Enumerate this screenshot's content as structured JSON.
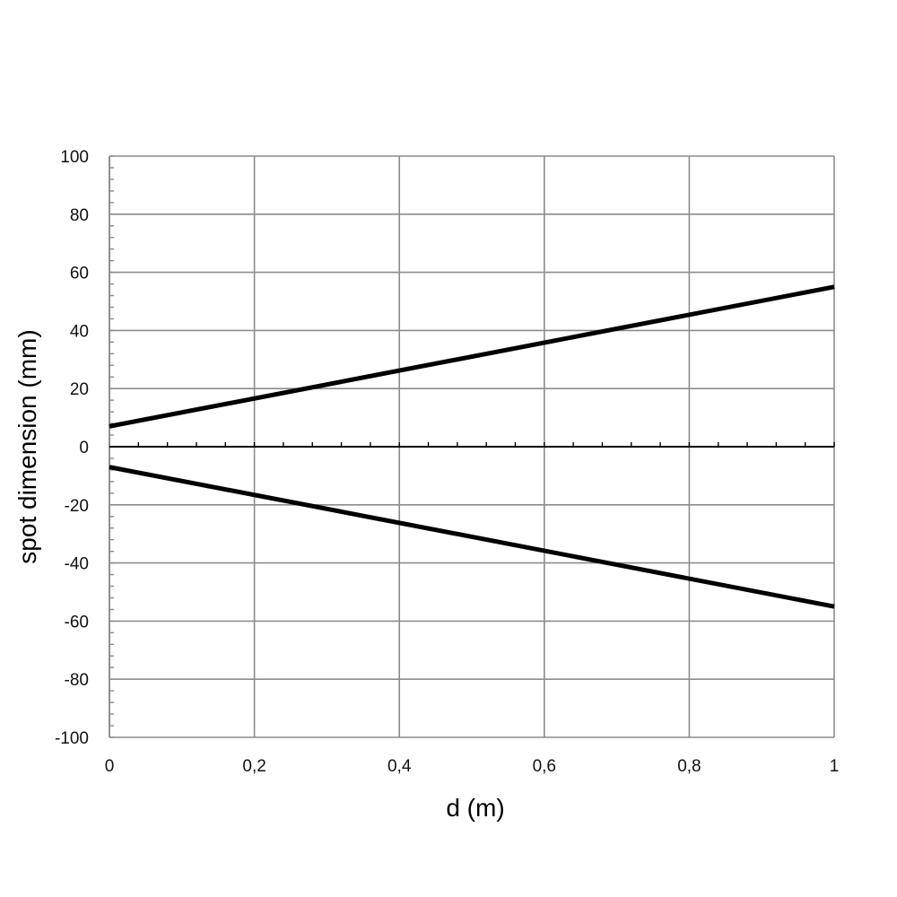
{
  "chart_data": {
    "type": "line",
    "title": "",
    "xlabel": "d (m)",
    "ylabel": "spot dimension (mm)",
    "xlim": [
      0,
      1
    ],
    "ylim": [
      -100,
      100
    ],
    "x_ticks": [
      0,
      0.2,
      0.4,
      0.6,
      0.8,
      1
    ],
    "x_tick_labels": [
      "0",
      "0,2",
      "0,4",
      "0,6",
      "0,8",
      "1"
    ],
    "y_ticks": [
      100,
      80,
      60,
      40,
      20,
      0,
      -20,
      -40,
      -60,
      -80,
      -100
    ],
    "y_tick_labels": [
      "100",
      "80",
      "60",
      "40",
      "20",
      "0",
      "-20",
      "-40",
      "-60",
      "-80",
      "-100"
    ],
    "grid": true,
    "legend": "none",
    "series": [
      {
        "x": [
          0,
          1
        ],
        "y": [
          7,
          55
        ],
        "color": "#000000"
      },
      {
        "x": [
          0,
          1
        ],
        "y": [
          -7,
          -55
        ],
        "color": "#000000"
      }
    ],
    "colors": {
      "grid": "#8c8c8c",
      "axis": "#000000",
      "line": "#000000"
    }
  }
}
